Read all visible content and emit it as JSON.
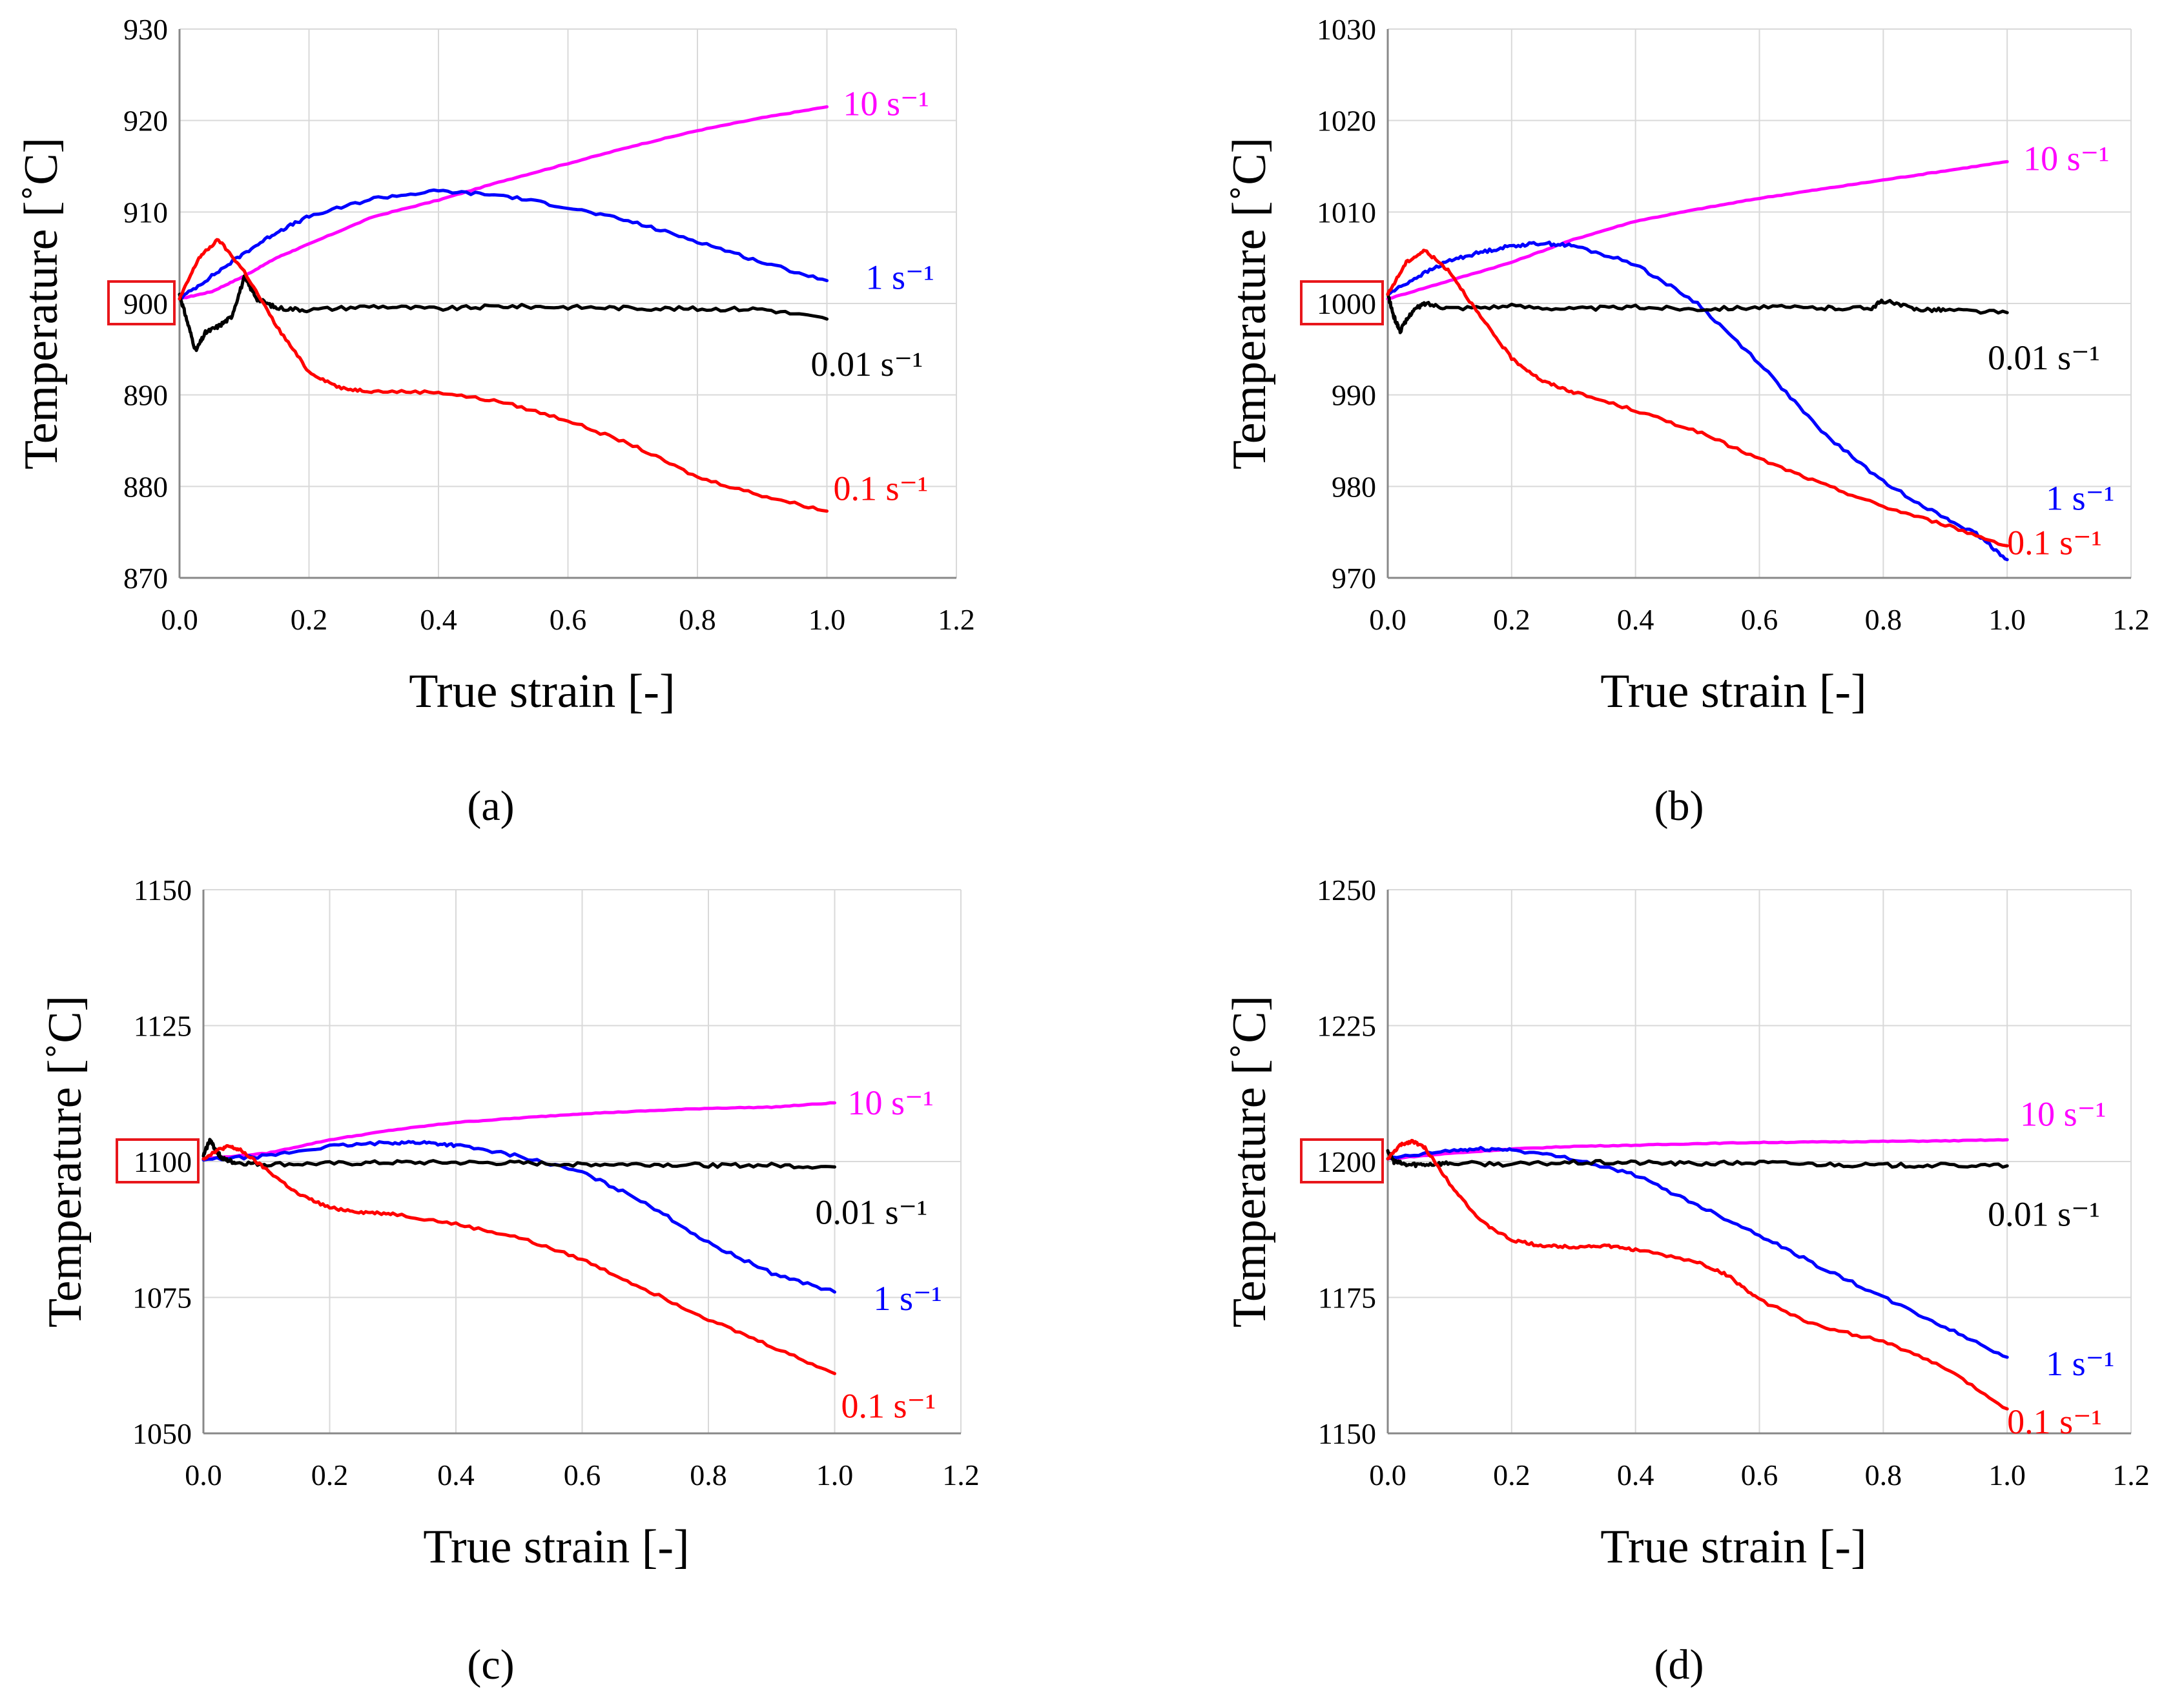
{
  "figure": {
    "xlabel": "True strain [-]",
    "ylabel": "Temperature [˚C]",
    "xticks": [
      "0.0",
      "0.2",
      "0.4",
      "0.6",
      "0.8",
      "1.0",
      "1.2"
    ],
    "series_colors": {
      "10 s⁻¹": "#ff00ff",
      "1 s⁻¹": "#0000ff",
      "0.01 s⁻¹": "#000000",
      "0.1 s⁻¹": "#ff0000"
    },
    "highlight_color": "#e8161b"
  },
  "chart_data": [
    {
      "type": "line",
      "panel_label": "(a)",
      "xlabel": "True strain [-]",
      "ylabel": "Temperature [˚C]",
      "xlim": [
        0,
        1.2
      ],
      "ylim": [
        870,
        930
      ],
      "yticks": [
        "870",
        "880",
        "890",
        "900",
        "910",
        "920",
        "930"
      ],
      "highlighted_ytick": "900",
      "series": [
        {
          "name": "10 s⁻¹",
          "color": "#ff00ff",
          "x": [
            0,
            0.05,
            0.1,
            0.15,
            0.2,
            0.3,
            0.4,
            0.5,
            0.6,
            0.7,
            0.8,
            0.9,
            1.0
          ],
          "y": [
            900.5,
            901.3,
            903,
            905,
            906.5,
            909.5,
            911.3,
            913.4,
            915.3,
            917.2,
            918.9,
            920.3,
            921.5
          ]
        },
        {
          "name": "1 s⁻¹",
          "color": "#0000ff",
          "x": [
            0,
            0.05,
            0.1,
            0.15,
            0.2,
            0.3,
            0.4,
            0.5,
            0.6,
            0.7,
            0.8,
            0.9,
            1.0
          ],
          "y": [
            900.5,
            903,
            905.5,
            907.8,
            909.5,
            911.5,
            912.3,
            911.8,
            910.5,
            908.9,
            906.8,
            904.5,
            902.5
          ]
        },
        {
          "name": "0.01 s⁻¹",
          "color": "#000000",
          "x": [
            0,
            0.01,
            0.025,
            0.04,
            0.06,
            0.08,
            0.1,
            0.12,
            0.15,
            0.2,
            0.3,
            0.4,
            0.5,
            0.6,
            0.7,
            0.8,
            0.9,
            1.0
          ],
          "y": [
            901,
            898.5,
            894.8,
            896.8,
            897.5,
            898.5,
            902.8,
            900.5,
            899.5,
            899.3,
            899.7,
            899.4,
            899.7,
            899.6,
            899.5,
            899.4,
            899.4,
            898.3
          ]
        },
        {
          "name": "0.1 s⁻¹",
          "color": "#ff0000",
          "x": [
            0,
            0.03,
            0.06,
            0.1,
            0.15,
            0.2,
            0.25,
            0.3,
            0.4,
            0.5,
            0.6,
            0.7,
            0.8,
            0.9,
            1.0
          ],
          "y": [
            900.5,
            905,
            907,
            903.5,
            897.5,
            892.5,
            890.7,
            890.4,
            890.3,
            889.2,
            887.2,
            884.5,
            881,
            879,
            877.3
          ]
        }
      ]
    },
    {
      "type": "line",
      "panel_label": "(b)",
      "xlabel": "True strain [-]",
      "ylabel": "Temperature [˚C]",
      "xlim": [
        0,
        1.2
      ],
      "ylim": [
        970,
        1030
      ],
      "yticks": [
        "970",
        "980",
        "990",
        "1000",
        "1010",
        "1020",
        "1030"
      ],
      "highlighted_ytick": "1000",
      "series": [
        {
          "name": "10 s⁻¹",
          "color": "#ff00ff",
          "x": [
            0,
            0.1,
            0.2,
            0.3,
            0.4,
            0.5,
            0.6,
            0.7,
            0.8,
            0.9,
            1.0
          ],
          "y": [
            1000.5,
            1002.5,
            1004.5,
            1007,
            1009,
            1010.3,
            1011.5,
            1012.5,
            1013.5,
            1014.5,
            1015.5
          ]
        },
        {
          "name": "1 s⁻¹",
          "color": "#0000ff",
          "x": [
            0,
            0.05,
            0.1,
            0.15,
            0.2,
            0.25,
            0.3,
            0.4,
            0.5,
            0.6,
            0.7,
            0.8,
            0.9,
            0.95,
            1.0
          ],
          "y": [
            1001,
            1003,
            1004.7,
            1005.6,
            1006.3,
            1006.6,
            1006.3,
            1004.3,
            1000,
            993.5,
            986,
            980.5,
            976.5,
            974.8,
            972
          ]
        },
        {
          "name": "0.01 s⁻¹",
          "color": "#000000",
          "x": [
            0,
            0.01,
            0.02,
            0.04,
            0.06,
            0.1,
            0.2,
            0.3,
            0.4,
            0.5,
            0.6,
            0.7,
            0.78,
            0.8,
            0.85,
            0.9,
            1.0
          ],
          "y": [
            1001,
            998.5,
            997,
            999.2,
            1000,
            999.5,
            999.7,
            999.4,
            999.6,
            999.4,
            999.6,
            999.5,
            999.5,
            1000.3,
            999.4,
            999.3,
            999
          ]
        },
        {
          "name": "0.1 s⁻¹",
          "color": "#ff0000",
          "x": [
            0,
            0.03,
            0.06,
            0.1,
            0.15,
            0.2,
            0.25,
            0.3,
            0.4,
            0.5,
            0.6,
            0.7,
            0.8,
            0.9,
            1.0
          ],
          "y": [
            1001,
            1004.5,
            1005.8,
            1003.5,
            998.5,
            994,
            991.5,
            990.3,
            988.3,
            986,
            983,
            980.3,
            977.8,
            975.8,
            973.5
          ]
        }
      ]
    },
    {
      "type": "line",
      "panel_label": "(c)",
      "xlabel": "True strain [-]",
      "ylabel": "Temperature [˚C]",
      "xlim": [
        0,
        1.2
      ],
      "ylim": [
        1050,
        1150
      ],
      "yticks": [
        "1050",
        "1075",
        "1100",
        "1125",
        "1150"
      ],
      "highlighted_ytick": "1100",
      "series": [
        {
          "name": "10 s⁻¹",
          "color": "#ff00ff",
          "x": [
            0,
            0.1,
            0.2,
            0.3,
            0.4,
            0.5,
            0.6,
            0.7,
            0.8,
            0.9,
            1.0
          ],
          "y": [
            1100.5,
            1101.5,
            1104,
            1105.8,
            1107.2,
            1108,
            1108.8,
            1109.3,
            1109.8,
            1110,
            1110.8
          ]
        },
        {
          "name": "1 s⁻¹",
          "color": "#0000ff",
          "x": [
            0,
            0.1,
            0.2,
            0.3,
            0.35,
            0.4,
            0.5,
            0.6,
            0.7,
            0.8,
            0.9,
            1.0
          ],
          "y": [
            1100.3,
            1101,
            1102.8,
            1103.5,
            1103.5,
            1103,
            1101,
            1098,
            1092.5,
            1085,
            1079.5,
            1076
          ]
        },
        {
          "name": "0.01 s⁻¹",
          "color": "#000000",
          "x": [
            0,
            0.01,
            0.02,
            0.03,
            0.05,
            0.1,
            0.2,
            0.3,
            0.4,
            0.5,
            0.6,
            0.7,
            0.8,
            0.9,
            1.0
          ],
          "y": [
            1101,
            1104,
            1102,
            1100.5,
            1099.8,
            1099.5,
            1099.6,
            1099.8,
            1099.8,
            1099.7,
            1099.5,
            1099.5,
            1099.3,
            1099.3,
            1099
          ]
        },
        {
          "name": "0.1 s⁻¹",
          "color": "#ff0000",
          "x": [
            0,
            0.02,
            0.04,
            0.06,
            0.1,
            0.15,
            0.2,
            0.25,
            0.3,
            0.4,
            0.5,
            0.6,
            0.7,
            0.8,
            0.9,
            1.0
          ],
          "y": [
            1100.5,
            1102,
            1102.8,
            1102,
            1098.5,
            1094,
            1091.5,
            1090.7,
            1090.4,
            1088.5,
            1086,
            1082,
            1076.5,
            1071,
            1066,
            1061
          ]
        }
      ]
    },
    {
      "type": "line",
      "panel_label": "(d)",
      "xlabel": "True strain [-]",
      "ylabel": "Temperature [˚C]",
      "xlim": [
        0,
        1.2
      ],
      "ylim": [
        1150,
        1250
      ],
      "yticks": [
        "1150",
        "1175",
        "1200",
        "1225",
        "1250"
      ],
      "highlighted_ytick": "1200",
      "series": [
        {
          "name": "10 s⁻¹",
          "color": "#ff00ff",
          "x": [
            0,
            0.1,
            0.2,
            0.3,
            0.4,
            0.5,
            0.6,
            0.7,
            0.8,
            0.9,
            1.0
          ],
          "y": [
            1200.5,
            1201.5,
            1202.3,
            1202.8,
            1203,
            1203.3,
            1203.5,
            1203.6,
            1203.7,
            1203.8,
            1204
          ]
        },
        {
          "name": "1 s⁻¹",
          "color": "#0000ff",
          "x": [
            0,
            0.1,
            0.15,
            0.2,
            0.3,
            0.4,
            0.5,
            0.6,
            0.7,
            0.8,
            0.9,
            1.0
          ],
          "y": [
            1200.5,
            1202,
            1202.3,
            1202.2,
            1200.5,
            1197.5,
            1192,
            1186.5,
            1180.5,
            1175,
            1169.5,
            1164
          ]
        },
        {
          "name": "0.01 s⁻¹",
          "color": "#000000",
          "x": [
            0,
            0.01,
            0.03,
            0.06,
            0.1,
            0.2,
            0.3,
            0.4,
            0.5,
            0.6,
            0.7,
            0.8,
            0.9,
            1.0
          ],
          "y": [
            1202,
            1200,
            1199.4,
            1199.5,
            1199.7,
            1199.5,
            1199.8,
            1199.8,
            1199.6,
            1199.8,
            1199.5,
            1199.3,
            1199.3,
            1199.2
          ]
        },
        {
          "name": "0.1 s⁻¹",
          "color": "#ff0000",
          "x": [
            0,
            0.02,
            0.04,
            0.06,
            0.1,
            0.15,
            0.2,
            0.25,
            0.3,
            0.35,
            0.4,
            0.5,
            0.55,
            0.6,
            0.7,
            0.8,
            0.9,
            1.0
          ],
          "y": [
            1200.5,
            1203,
            1203.8,
            1202.5,
            1196,
            1189,
            1185.5,
            1184.5,
            1184.3,
            1184.5,
            1183.8,
            1181.5,
            1179,
            1174.5,
            1169.5,
            1167,
            1162,
            1154.5
          ]
        }
      ]
    }
  ]
}
